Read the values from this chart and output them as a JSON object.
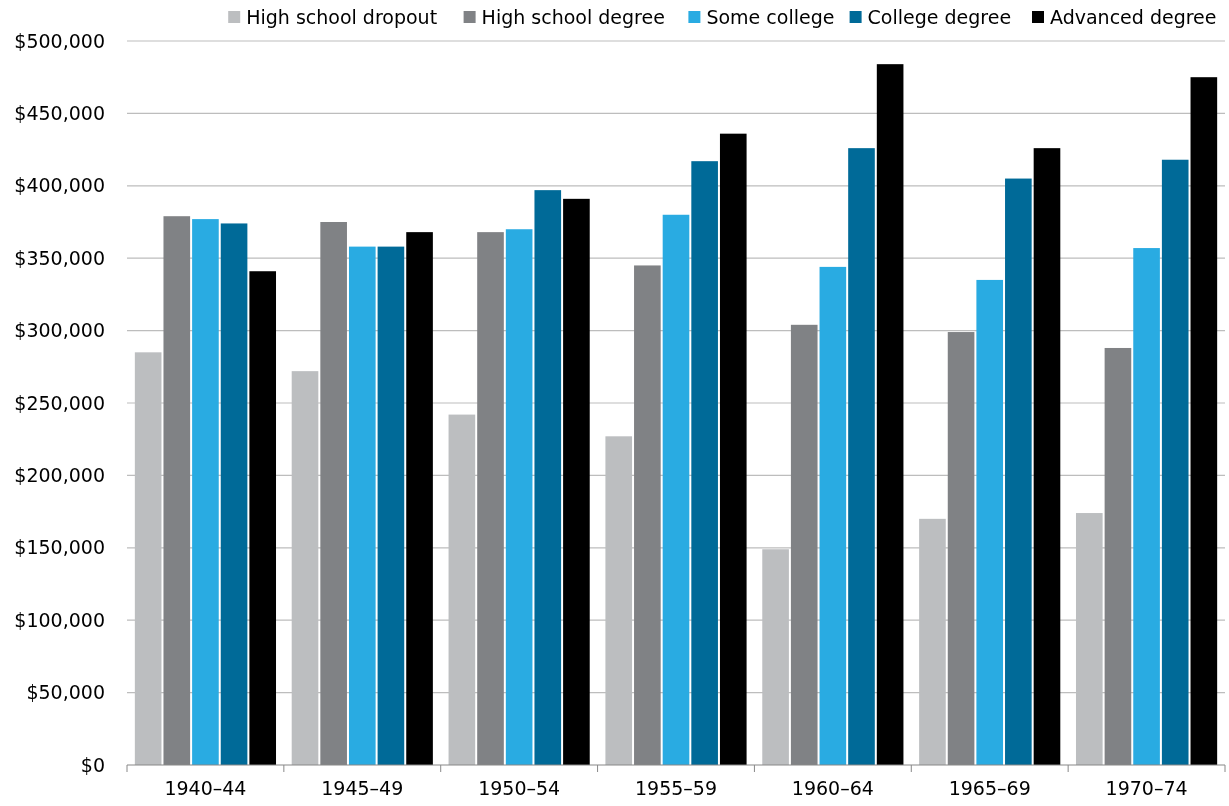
{
  "chart_data": {
    "type": "bar",
    "categories": [
      "1940–44",
      "1945–49",
      "1950–54",
      "1955–59",
      "1960–64",
      "1965–69",
      "1970–74"
    ],
    "series": [
      {
        "name": "High school dropout",
        "color": "#bcbec0",
        "values": [
          285000,
          272000,
          242000,
          227000,
          149000,
          170000,
          174000
        ]
      },
      {
        "name": "High school degree",
        "color": "#808285",
        "values": [
          379000,
          375000,
          368000,
          345000,
          304000,
          299000,
          288000
        ]
      },
      {
        "name": "Some college",
        "color": "#29abe2",
        "values": [
          377000,
          358000,
          370000,
          380000,
          344000,
          335000,
          357000
        ]
      },
      {
        "name": "College degree",
        "color": "#006a98",
        "values": [
          374000,
          358000,
          397000,
          417000,
          426000,
          405000,
          418000
        ]
      },
      {
        "name": "Advanced degree",
        "color": "#000000",
        "values": [
          341000,
          368000,
          391000,
          436000,
          484000,
          426000,
          475000
        ]
      }
    ],
    "ylim": [
      0,
      500000
    ],
    "yticks": [
      {
        "value": 0,
        "label": "$0"
      },
      {
        "value": 50000,
        "label": "$50,000"
      },
      {
        "value": 100000,
        "label": "$100,000"
      },
      {
        "value": 150000,
        "label": "$150,000"
      },
      {
        "value": 200000,
        "label": "$200,000"
      },
      {
        "value": 250000,
        "label": "$250,000"
      },
      {
        "value": 300000,
        "label": "$300,000"
      },
      {
        "value": 350000,
        "label": "$350,000"
      },
      {
        "value": 400000,
        "label": "$400,000"
      },
      {
        "value": 450000,
        "label": "$450,000"
      },
      {
        "value": 500000,
        "label": "$500,000"
      }
    ],
    "grid": "y",
    "legend": "top right"
  }
}
